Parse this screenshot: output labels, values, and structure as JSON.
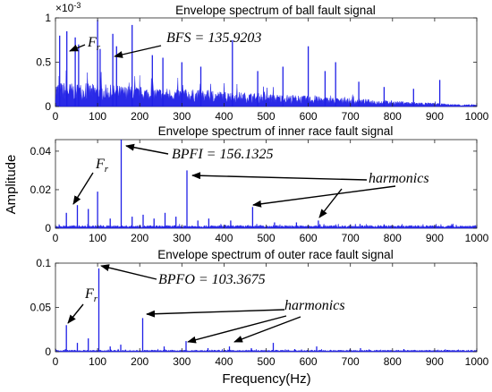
{
  "chart_data": [
    {
      "type": "line",
      "title": "Envelope spectrum of ball fault signal",
      "xlim": [
        0,
        1000
      ],
      "ylim": [
        0,
        0.001
      ],
      "y_scale_label": "×10",
      "y_scale_exp": "-3",
      "xticks": [
        "0",
        "100",
        "200",
        "300",
        "400",
        "500",
        "600",
        "700",
        "800",
        "900",
        "1000"
      ],
      "yticks": [
        {
          "v": 0,
          "label": "0"
        },
        {
          "v": 0.0005,
          "label": "0.5"
        },
        {
          "v": 0.001,
          "label": "1"
        }
      ],
      "peaks": [
        {
          "x": 10,
          "y": 0.0008
        },
        {
          "x": 27,
          "y": 0.00085
        },
        {
          "x": 47,
          "y": 0.00078
        },
        {
          "x": 55,
          "y": 0.0007
        },
        {
          "x": 100,
          "y": 0.00098
        },
        {
          "x": 106,
          "y": 0.00065
        },
        {
          "x": 136,
          "y": 0.00082
        },
        {
          "x": 145,
          "y": 0.00068
        },
        {
          "x": 182,
          "y": 0.00092
        },
        {
          "x": 230,
          "y": 0.00058
        },
        {
          "x": 255,
          "y": 0.00055
        },
        {
          "x": 300,
          "y": 0.0005
        },
        {
          "x": 345,
          "y": 0.00045
        },
        {
          "x": 420,
          "y": 0.00075
        },
        {
          "x": 480,
          "y": 0.0004
        },
        {
          "x": 540,
          "y": 0.00045
        },
        {
          "x": 600,
          "y": 0.00068
        },
        {
          "x": 640,
          "y": 0.0004
        },
        {
          "x": 665,
          "y": 0.0005
        },
        {
          "x": 720,
          "y": 0.00028
        },
        {
          "x": 780,
          "y": 0.00022
        },
        {
          "x": 850,
          "y": 0.0002
        },
        {
          "x": 912,
          "y": 0.0003
        }
      ],
      "annotations": [
        {
          "text_main": "F",
          "text_sub": "r"
        },
        {
          "text_main": "BFS = 135.9203"
        }
      ]
    },
    {
      "type": "line",
      "title": "Envelope spectrum of inner race fault signal",
      "xlim": [
        0,
        1000
      ],
      "ylim": [
        0,
        0.046
      ],
      "xticks": [
        "0",
        "100",
        "200",
        "300",
        "400",
        "500",
        "600",
        "700",
        "800",
        "900",
        "1000"
      ],
      "yticks": [
        {
          "v": 0,
          "label": "0"
        },
        {
          "v": 0.02,
          "label": "0.02"
        },
        {
          "v": 0.04,
          "label": "0.04"
        }
      ],
      "peaks": [
        {
          "x": 26,
          "y": 0.008
        },
        {
          "x": 52,
          "y": 0.012
        },
        {
          "x": 78,
          "y": 0.01
        },
        {
          "x": 100,
          "y": 0.019
        },
        {
          "x": 130,
          "y": 0.005
        },
        {
          "x": 156,
          "y": 0.046
        },
        {
          "x": 182,
          "y": 0.006
        },
        {
          "x": 208,
          "y": 0.007
        },
        {
          "x": 234,
          "y": 0.005
        },
        {
          "x": 260,
          "y": 0.008
        },
        {
          "x": 286,
          "y": 0.006
        },
        {
          "x": 312,
          "y": 0.03
        },
        {
          "x": 338,
          "y": 0.004
        },
        {
          "x": 364,
          "y": 0.005
        },
        {
          "x": 416,
          "y": 0.004
        },
        {
          "x": 468,
          "y": 0.011
        },
        {
          "x": 520,
          "y": 0.003
        },
        {
          "x": 572,
          "y": 0.003
        },
        {
          "x": 624,
          "y": 0.004
        },
        {
          "x": 700,
          "y": 0.002
        },
        {
          "x": 780,
          "y": 0.002
        },
        {
          "x": 860,
          "y": 0.0015
        },
        {
          "x": 940,
          "y": 0.0015
        }
      ],
      "annotations": [
        {
          "text_main": "F",
          "text_sub": "r"
        },
        {
          "text_main": "BPFI = 156.1325"
        },
        {
          "text_main": "harmonics"
        }
      ]
    },
    {
      "type": "line",
      "title": "Envelope spectrum of outer race fault signal",
      "xlim": [
        0,
        1000
      ],
      "ylim": [
        0,
        0.1
      ],
      "xticks": [
        "0",
        "100",
        "200",
        "300",
        "400",
        "500",
        "600",
        "700",
        "800",
        "900",
        "1000"
      ],
      "yticks": [
        {
          "v": 0,
          "label": "0"
        },
        {
          "v": 0.05,
          "label": "0.05"
        },
        {
          "v": 0.1,
          "label": "0.1"
        }
      ],
      "peaks": [
        {
          "x": 26,
          "y": 0.03
        },
        {
          "x": 52,
          "y": 0.01
        },
        {
          "x": 78,
          "y": 0.015
        },
        {
          "x": 103,
          "y": 0.094
        },
        {
          "x": 130,
          "y": 0.006
        },
        {
          "x": 155,
          "y": 0.008
        },
        {
          "x": 207,
          "y": 0.038
        },
        {
          "x": 258,
          "y": 0.006
        },
        {
          "x": 310,
          "y": 0.012
        },
        {
          "x": 362,
          "y": 0.004
        },
        {
          "x": 413,
          "y": 0.006
        },
        {
          "x": 465,
          "y": 0.004
        },
        {
          "x": 517,
          "y": 0.01
        },
        {
          "x": 568,
          "y": 0.003
        },
        {
          "x": 620,
          "y": 0.006
        },
        {
          "x": 724,
          "y": 0.004
        },
        {
          "x": 827,
          "y": 0.003
        },
        {
          "x": 930,
          "y": 0.002
        }
      ],
      "annotations": [
        {
          "text_main": "F",
          "text_sub": "r"
        },
        {
          "text_main": "BPFO = 103.3675"
        },
        {
          "text_main": "harmonics"
        }
      ]
    }
  ],
  "axes": {
    "ylabel": "Amplitude",
    "xlabel": "Frequency(Hz)"
  },
  "colors": {
    "series": "#1f1fe6",
    "axes": "#222222",
    "annotation": "#000000"
  }
}
